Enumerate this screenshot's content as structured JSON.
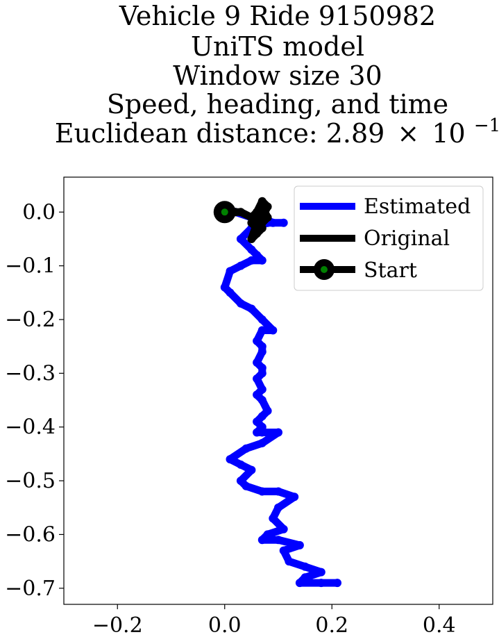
{
  "chart_data": {
    "type": "line",
    "title_lines": [
      "Vehicle 9 Ride 9150982",
      "UniTS model",
      "Window size 30",
      "Speed, heading, and time"
    ],
    "title_last_prefix": "Euclidean distance: 2.89",
    "title_last_times": "×",
    "title_last_base": "10",
    "title_last_exp": "−1",
    "xlim": [
      -0.3,
      0.5
    ],
    "ylim": [
      -0.73,
      0.065
    ],
    "x_ticks": [
      -0.2,
      0.0,
      0.2,
      0.4
    ],
    "x_tick_labels": [
      "−0.2",
      "0.0",
      "0.2",
      "0.4"
    ],
    "y_ticks": [
      0.0,
      -0.1,
      -0.2,
      -0.3,
      -0.4,
      -0.5,
      -0.6,
      -0.7
    ],
    "y_tick_labels": [
      "0.0",
      "−0.1",
      "−0.2",
      "−0.3",
      "−0.4",
      "−0.5",
      "−0.6",
      "−0.7"
    ],
    "grid": false,
    "legend": {
      "placement": "top-right",
      "entries": [
        {
          "label": "Estimated",
          "color": "#0000ff"
        },
        {
          "label": "Original",
          "color": "#000000"
        },
        {
          "label": "Start",
          "color": "#000000",
          "marker_color": "#008000"
        }
      ]
    },
    "series": [
      {
        "name": "Estimated",
        "color": "#0000ff",
        "x": [
          0.0,
          0.02,
          0.05,
          0.07,
          0.09,
          0.11,
          0.08,
          0.05,
          0.03,
          0.05,
          0.06,
          0.07,
          0.05,
          0.03,
          0.01,
          0.0,
          0.01,
          0.03,
          0.05,
          0.07,
          0.09,
          0.07,
          0.06,
          0.07,
          0.07,
          0.06,
          0.07,
          0.07,
          0.06,
          0.07,
          0.06,
          0.07,
          0.08,
          0.07,
          0.06,
          0.07,
          0.06,
          0.07,
          0.1,
          0.07,
          0.04,
          0.01,
          0.03,
          0.05,
          0.03,
          0.04,
          0.07,
          0.1,
          0.13,
          0.1,
          0.09,
          0.11,
          0.08,
          0.07,
          0.1,
          0.14,
          0.11,
          0.12,
          0.15,
          0.18,
          0.15,
          0.14,
          0.18,
          0.21
        ],
        "y": [
          0.0,
          0.0,
          -0.01,
          -0.01,
          -0.02,
          -0.02,
          -0.02,
          -0.03,
          -0.05,
          -0.07,
          -0.08,
          -0.09,
          -0.09,
          -0.1,
          -0.11,
          -0.14,
          -0.15,
          -0.17,
          -0.18,
          -0.2,
          -0.22,
          -0.22,
          -0.24,
          -0.25,
          -0.26,
          -0.28,
          -0.29,
          -0.3,
          -0.31,
          -0.33,
          -0.34,
          -0.35,
          -0.37,
          -0.38,
          -0.39,
          -0.4,
          -0.41,
          -0.41,
          -0.41,
          -0.43,
          -0.44,
          -0.46,
          -0.47,
          -0.48,
          -0.5,
          -0.51,
          -0.52,
          -0.52,
          -0.53,
          -0.55,
          -0.57,
          -0.59,
          -0.6,
          -0.61,
          -0.61,
          -0.62,
          -0.63,
          -0.65,
          -0.66,
          -0.67,
          -0.68,
          -0.69,
          -0.69,
          -0.69
        ]
      },
      {
        "name": "Original",
        "color": "#000000",
        "x": [
          0.0,
          0.02,
          0.03,
          0.05,
          0.06,
          0.07,
          0.08,
          0.07,
          0.06,
          0.05,
          0.06,
          0.07,
          0.08,
          0.07,
          0.06,
          0.05,
          0.06,
          0.07,
          0.06,
          0.05,
          0.06
        ],
        "y": [
          0.0,
          0.0,
          0.0,
          -0.01,
          0.0,
          0.02,
          0.01,
          -0.01,
          -0.02,
          -0.01,
          0.0,
          0.01,
          -0.01,
          -0.02,
          -0.03,
          -0.02,
          -0.01,
          -0.03,
          -0.04,
          -0.05,
          -0.02
        ]
      }
    ],
    "start_point": {
      "x": 0.0,
      "y": 0.0
    }
  }
}
